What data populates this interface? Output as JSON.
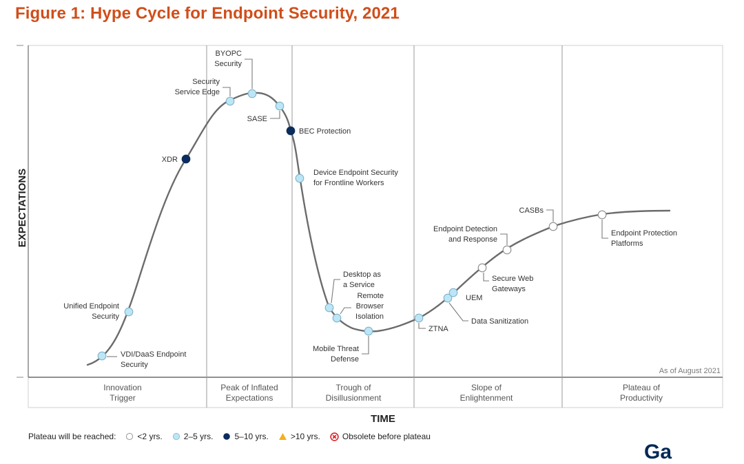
{
  "figure": {
    "title": "Figure 1: Hype Cycle for Endpoint Security, 2021",
    "as_of": "As of August 2021",
    "logo_partial": "Ga"
  },
  "colors": {
    "title": "#d04e1a",
    "curve": "#6b6b6b",
    "lt2": "#ffffff",
    "y2to5": "#bde6f5",
    "y5to10": "#0b2d5c",
    "gt10": "#f2b21b",
    "obsolete": "#e0242b",
    "frame": "#cfcfcf",
    "divider": "#9a9a9a"
  },
  "chart_data": {
    "type": "scatter",
    "title": "Figure 1: Hype Cycle for Endpoint Security, 2021",
    "xlabel": "TIME",
    "ylabel": "EXPECTATIONS",
    "annotation": "As of August 2021",
    "phases": [
      "Innovation Trigger",
      "Peak of Inflated Expectations",
      "Trough of Disillusionment",
      "Slope of Enlightenment",
      "Plateau of Productivity"
    ],
    "phase_lines": [
      [
        "Innovation",
        "Trigger"
      ],
      [
        "Peak of Inflated",
        "Expectations"
      ],
      [
        "Trough of",
        "Disillusionment"
      ],
      [
        "Slope of",
        "Enlightenment"
      ],
      [
        "Plateau of",
        "Productivity"
      ]
    ],
    "legend": {
      "prefix": "Plateau will be reached:",
      "entries": [
        {
          "key": "lt2",
          "label": "<2 yrs."
        },
        {
          "key": "y2to5",
          "label": "2–5 yrs."
        },
        {
          "key": "y5to10",
          "label": "5–10 yrs."
        },
        {
          "key": "gt10",
          "label": ">10 yrs."
        },
        {
          "key": "obsolete",
          "label": "Obsolete before plateau"
        }
      ]
    },
    "technologies": [
      {
        "name": "VDI/DaaS Endpoint Security",
        "lines": [
          "VDI/DaaS Endpoint",
          "Security"
        ],
        "phase": "Innovation Trigger",
        "plateau": "y2to5"
      },
      {
        "name": "Unified Endpoint Security",
        "lines": [
          "Unified Endpoint",
          "Security"
        ],
        "phase": "Innovation Trigger",
        "plateau": "y2to5"
      },
      {
        "name": "XDR",
        "lines": [
          "XDR"
        ],
        "phase": "Innovation Trigger",
        "plateau": "y5to10"
      },
      {
        "name": "Security Service Edge",
        "lines": [
          "Security",
          "Service Edge"
        ],
        "phase": "Peak of Inflated Expectations",
        "plateau": "y2to5"
      },
      {
        "name": "BYOPC Security",
        "lines": [
          "BYOPC",
          "Security"
        ],
        "phase": "Peak of Inflated Expectations",
        "plateau": "y2to5"
      },
      {
        "name": "SASE",
        "lines": [
          "SASE"
        ],
        "phase": "Peak of Inflated Expectations",
        "plateau": "y2to5"
      },
      {
        "name": "BEC Protection",
        "lines": [
          "BEC Protection"
        ],
        "phase": "Peak of Inflated Expectations",
        "plateau": "y5to10"
      },
      {
        "name": "Device Endpoint Security for Frontline Workers",
        "lines": [
          "Device Endpoint Security",
          "for Frontline Workers"
        ],
        "phase": "Trough of Disillusionment",
        "plateau": "y2to5"
      },
      {
        "name": "Desktop as a Service",
        "lines": [
          "Desktop as",
          "a Service"
        ],
        "phase": "Trough of Disillusionment",
        "plateau": "y2to5"
      },
      {
        "name": "Remote Browser Isolation",
        "lines": [
          "Remote",
          "Browser",
          "Isolation"
        ],
        "phase": "Trough of Disillusionment",
        "plateau": "y2to5"
      },
      {
        "name": "Mobile Threat Defense",
        "lines": [
          "Mobile Threat",
          "Defense"
        ],
        "phase": "Trough of Disillusionment",
        "plateau": "y2to5"
      },
      {
        "name": "ZTNA",
        "lines": [
          "ZTNA"
        ],
        "phase": "Slope of Enlightenment",
        "plateau": "y2to5"
      },
      {
        "name": "Data Sanitization",
        "lines": [
          "Data Sanitization"
        ],
        "phase": "Slope of Enlightenment",
        "plateau": "y2to5"
      },
      {
        "name": "UEM",
        "lines": [
          "UEM"
        ],
        "phase": "Slope of Enlightenment",
        "plateau": "y2to5"
      },
      {
        "name": "Secure Web Gateways",
        "lines": [
          "Secure Web",
          "Gateways"
        ],
        "phase": "Slope of Enlightenment",
        "plateau": "lt2"
      },
      {
        "name": "Endpoint Detection and Response",
        "lines": [
          "Endpoint Detection",
          "and Response"
        ],
        "phase": "Slope of Enlightenment",
        "plateau": "lt2"
      },
      {
        "name": "CASBs",
        "lines": [
          "CASBs"
        ],
        "phase": "Slope of Enlightenment",
        "plateau": "lt2"
      },
      {
        "name": "Endpoint Protection Platforms",
        "lines": [
          "Endpoint Protection",
          "Platforms"
        ],
        "phase": "Plateau of Productivity",
        "plateau": "lt2"
      }
    ]
  }
}
